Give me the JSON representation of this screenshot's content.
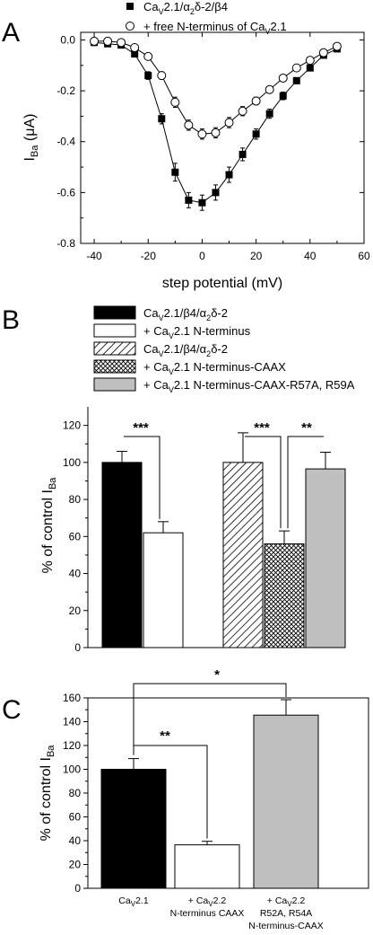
{
  "panels": {
    "a": {
      "letter": "A",
      "legend": [
        {
          "label_main": "Ca",
          "label_sub": "V",
          "label_rest": "2.1/α",
          "label_sub2": "2",
          "label_rest2": "δ-2/β4"
        },
        {
          "label_main": "+ free N-terminus of Ca",
          "label_sub": "V",
          "label_rest": "2.1"
        }
      ],
      "ylabel_main": "I",
      "ylabel_sub": "Ba",
      "ylabel_rest": " (μA)",
      "xlabel": "step potential (mV)",
      "xticks": [
        "-40",
        "-20",
        "0",
        "20",
        "40",
        "60"
      ],
      "yticks": [
        "0.0",
        "-0.2",
        "-0.4",
        "-0.6",
        "-0.8"
      ]
    },
    "b": {
      "letter": "B",
      "legend": [
        {
          "main": "Ca",
          "sub": "V",
          "rest": "2.1/β4/α",
          "sub2": "2",
          "rest2": "δ-2"
        },
        {
          "main": "+ Ca",
          "sub": "V",
          "rest": "2.1 N-terminus"
        },
        {
          "main": "Ca",
          "sub": "V",
          "rest": "2.1/β4/α",
          "sub2": "2",
          "rest2": "δ-2"
        },
        {
          "main": "+ Ca",
          "sub": "V",
          "rest": "2.1 N-terminus-CAAX"
        },
        {
          "main": "+ Ca",
          "sub": "V",
          "rest": "2.1 N-terminus-CAAX-R57A, R59A"
        }
      ],
      "ylabel_main": "% of control I",
      "ylabel_sub": "Ba",
      "yticks": [
        "0",
        "20",
        "40",
        "60",
        "80",
        "100",
        "120"
      ],
      "sig": [
        "***",
        "***",
        "**"
      ]
    },
    "c": {
      "letter": "C",
      "ylabel_main": "% of control I",
      "ylabel_sub": "Ba",
      "yticks": [
        "0",
        "20",
        "40",
        "60",
        "80",
        "100",
        "120",
        "140",
        "160"
      ],
      "categories": [
        {
          "l1a": "Ca",
          "l1s": "V",
          "l1b": "2.1",
          "l2": "",
          "l3": ""
        },
        {
          "l1a": "+ Ca",
          "l1s": "V",
          "l1b": "2.2",
          "l2": "N-terminus CAAX",
          "l3": ""
        },
        {
          "l1a": "+ Ca",
          "l1s": "V",
          "l1b": "2.2",
          "l2": "R52A, R54A",
          "l3": "N-terminus-CAAX"
        }
      ],
      "sig": [
        "**",
        "*"
      ]
    }
  },
  "chart_data": [
    {
      "type": "line",
      "xlim": [
        -45,
        60
      ],
      "ylim": [
        -0.8,
        0.03
      ],
      "series": [
        {
          "marker": "filled-square",
          "x": [
            -40,
            -35,
            -30,
            -25,
            -20,
            -15,
            -10,
            -5,
            0,
            5,
            10,
            15,
            20,
            25,
            30,
            35,
            40,
            45,
            50
          ],
          "y": [
            -0.01,
            -0.015,
            -0.02,
            -0.055,
            -0.14,
            -0.31,
            -0.52,
            -0.63,
            -0.64,
            -0.6,
            -0.53,
            -0.45,
            -0.37,
            -0.29,
            -0.22,
            -0.16,
            -0.11,
            -0.06,
            -0.035
          ],
          "err": [
            0.005,
            0.005,
            0.008,
            0.01,
            0.015,
            0.02,
            0.035,
            0.03,
            0.03,
            0.03,
            0.03,
            0.025,
            0.02,
            0.018,
            0.015,
            0.012,
            0.01,
            0.008,
            0.006
          ]
        },
        {
          "marker": "open-circle",
          "x": [
            -40,
            -35,
            -30,
            -25,
            -20,
            -15,
            -10,
            -5,
            0,
            5,
            10,
            15,
            20,
            25,
            30,
            35,
            40,
            45,
            50
          ],
          "y": [
            -0.005,
            -0.005,
            -0.01,
            -0.03,
            -0.065,
            -0.14,
            -0.245,
            -0.335,
            -0.37,
            -0.365,
            -0.325,
            -0.28,
            -0.24,
            -0.195,
            -0.15,
            -0.11,
            -0.08,
            -0.05,
            -0.025
          ],
          "err": [
            0.004,
            0.004,
            0.005,
            0.008,
            0.01,
            0.015,
            0.02,
            0.02,
            0.02,
            0.02,
            0.02,
            0.018,
            0.015,
            0.012,
            0.01,
            0.008,
            0.006,
            0.005,
            0.004
          ]
        }
      ]
    },
    {
      "type": "bar",
      "ylim": [
        0,
        130
      ],
      "bars": [
        {
          "value": 100,
          "err": 6,
          "pattern": "black",
          "group": 0
        },
        {
          "value": 62,
          "err": 6,
          "pattern": "white",
          "group": 0
        },
        {
          "value": 100,
          "err": 16,
          "pattern": "hatch",
          "group": 1
        },
        {
          "value": 56,
          "err": 7,
          "pattern": "crosshatch",
          "group": 1
        },
        {
          "value": 96.5,
          "err": 9,
          "pattern": "gray",
          "group": 1
        }
      ]
    },
    {
      "type": "bar",
      "ylim": [
        0,
        160
      ],
      "bars": [
        {
          "value": 100,
          "err": 9,
          "pattern": "black"
        },
        {
          "value": 36.5,
          "err": 3,
          "pattern": "white"
        },
        {
          "value": 145.5,
          "err": 13,
          "pattern": "gray"
        }
      ]
    }
  ]
}
